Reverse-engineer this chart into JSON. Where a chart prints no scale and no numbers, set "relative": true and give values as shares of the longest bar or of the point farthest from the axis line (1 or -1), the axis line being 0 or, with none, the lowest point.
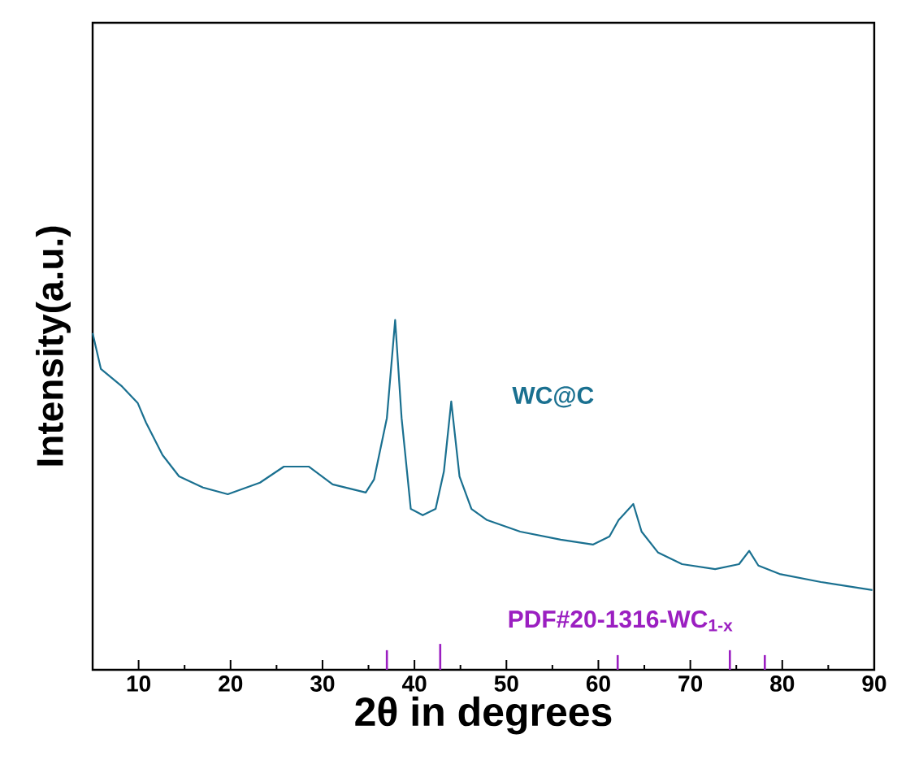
{
  "chart_data": {
    "type": "line",
    "relative": true,
    "xlabel": "2θ in degrees",
    "ylabel": "Intensity(a.u.)",
    "xlim": [
      5,
      90
    ],
    "xticks": [
      10,
      20,
      30,
      40,
      50,
      60,
      70,
      80,
      90
    ],
    "tick_labels": "x",
    "series": [
      {
        "name": "WC@C",
        "color": "#1a7090",
        "x": [
          5,
          5.9,
          8.2,
          9.9,
          10.8,
          12.6,
          14.4,
          17.0,
          19.7,
          23.2,
          25.8,
          28.5,
          31.1,
          34.7,
          35.6,
          37.0,
          37.9,
          38.6,
          39.6,
          40.9,
          42.3,
          43.2,
          44.0,
          44.9,
          46.2,
          47.9,
          51.5,
          55.9,
          59.4,
          61.2,
          62.2,
          63.8,
          64.7,
          66.5,
          69.1,
          72.7,
          75.3,
          76.4,
          77.4,
          79.7,
          84.2,
          89.8
        ],
        "values": [
          0.963,
          0.86,
          0.81,
          0.763,
          0.707,
          0.614,
          0.553,
          0.521,
          0.502,
          0.535,
          0.581,
          0.581,
          0.53,
          0.507,
          0.544,
          0.72,
          1.0,
          0.72,
          0.46,
          0.442,
          0.46,
          0.567,
          0.767,
          0.553,
          0.46,
          0.428,
          0.395,
          0.372,
          0.358,
          0.381,
          0.428,
          0.474,
          0.395,
          0.335,
          0.302,
          0.288,
          0.302,
          0.34,
          0.298,
          0.274,
          0.251,
          0.228
        ]
      },
      {
        "name": "PDF#20-1316-WC$_{1-x}$",
        "type": "bar",
        "color": "#9b1fc1",
        "x": [
          37.0,
          42.8,
          62.1,
          74.3,
          78.1
        ],
        "values": [
          0.056,
          0.074,
          0.042,
          0.056,
          0.042
        ]
      }
    ]
  }
}
